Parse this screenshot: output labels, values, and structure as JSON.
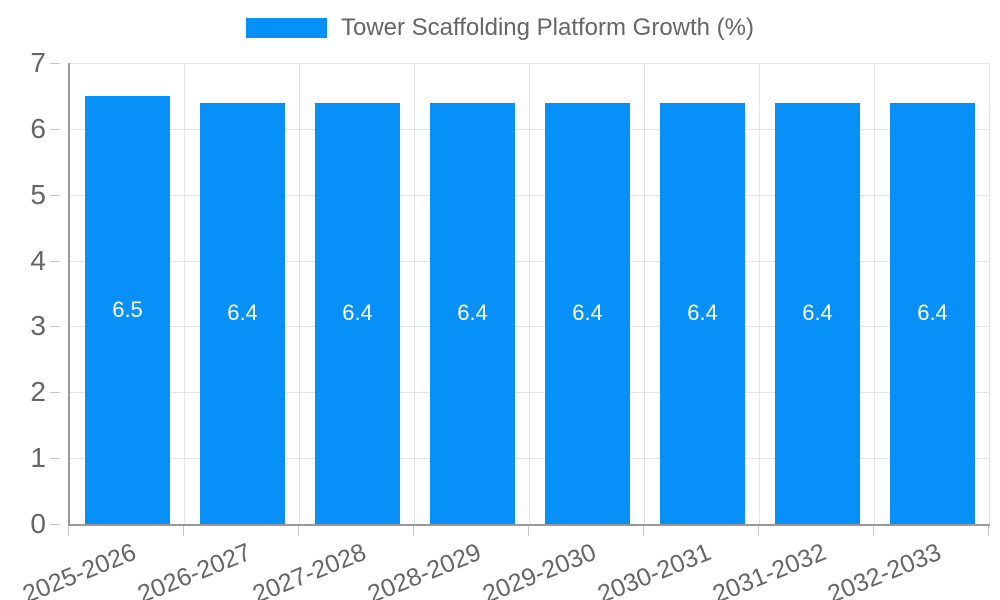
{
  "chart_data": {
    "type": "bar",
    "title": "",
    "legend_label": "Tower Scaffolding Platform Growth (%)",
    "legend_position": "top",
    "categories": [
      "2025-2026",
      "2026-2027",
      "2027-2028",
      "2028-2029",
      "2029-2030",
      "2030-2031",
      "2031-2032",
      "2032-2033"
    ],
    "values": [
      6.5,
      6.4,
      6.4,
      6.4,
      6.4,
      6.4,
      6.4,
      6.4
    ],
    "value_labels": [
      "6.5",
      "6.4",
      "6.4",
      "6.4",
      "6.4",
      "6.4",
      "6.4",
      "6.4"
    ],
    "xlabel": "",
    "ylabel": "",
    "ylim": [
      0,
      7
    ],
    "yticks": [
      0,
      1,
      2,
      3,
      4,
      5,
      6,
      7
    ],
    "grid": true,
    "colors": {
      "bar": "#0690f8",
      "grid": "#e5e5e5",
      "axis_border": "#999999",
      "tick_mark": "#c9c9c9",
      "tick_label": "#666666",
      "value_label": "#ffffff",
      "legend_text": "#666666",
      "background": "#ffffff"
    }
  }
}
